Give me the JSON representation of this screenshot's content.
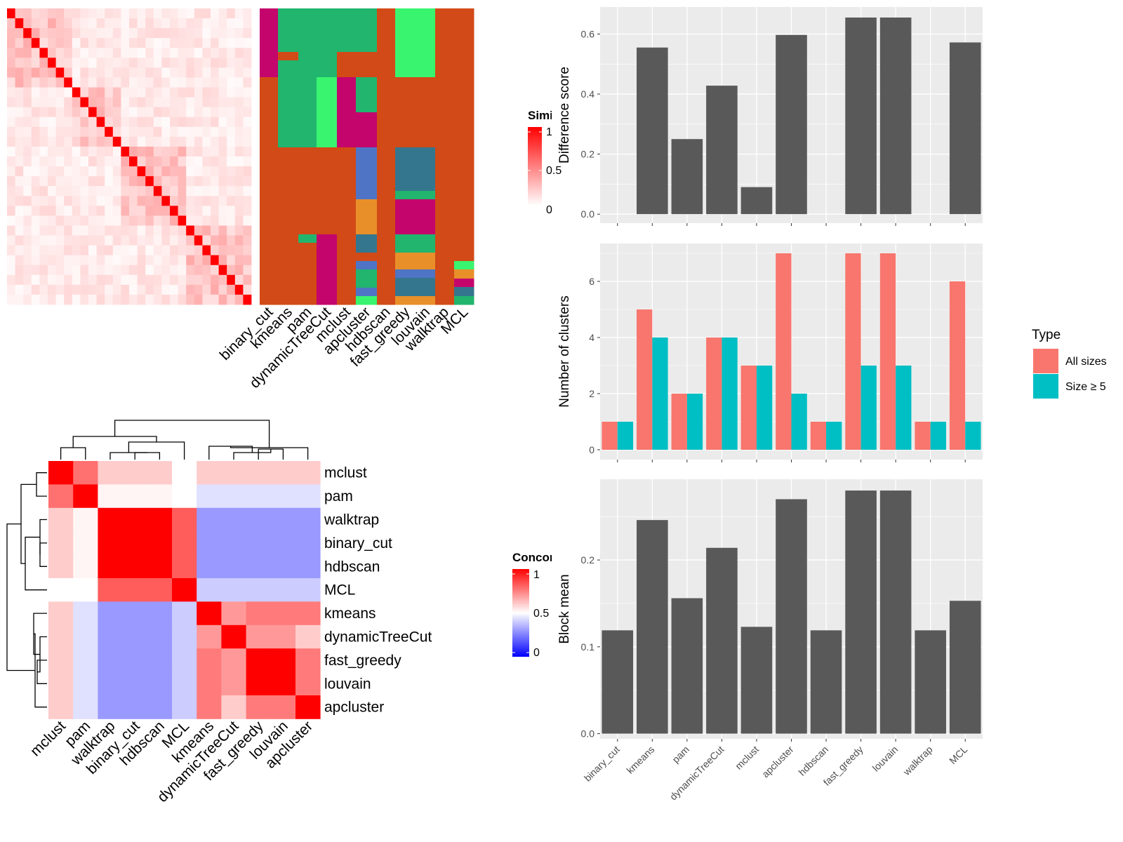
{
  "methods": [
    "binary_cut",
    "kmeans",
    "pam",
    "dynamicTreeCut",
    "mclust",
    "apcluster",
    "hdbscan",
    "fast_greedy",
    "louvain",
    "walktrap",
    "MCL"
  ],
  "colors": {
    "bar_fill": "#595959",
    "panel_bg": "#ebebeb",
    "grid": "#ffffff",
    "all_sizes": "#f8766d",
    "size5": "#00bfc4",
    "sim_high": "#ff0000",
    "sim_low": "#ffffff",
    "conc_high": "#ff0000",
    "conc_mid": "#ffffff",
    "conc_low": "#0000ff",
    "cluster_palette": [
      "#d24a17",
      "#c4056c",
      "#21b56e",
      "#39f46f",
      "#35768f",
      "#e88f2a",
      "#4f74c5"
    ]
  },
  "similarity_heatmap": {
    "legend_title": "Simila",
    "legend_ticks": [
      "1",
      "0.5",
      "0"
    ]
  },
  "concordance_heatmap": {
    "row_order": [
      "mclust",
      "pam",
      "walktrap",
      "binary_cut",
      "hdbscan",
      "MCL",
      "kmeans",
      "dynamicTreeCut",
      "fast_greedy",
      "louvain",
      "apcluster"
    ],
    "col_order": [
      "mclust",
      "pam",
      "walktrap",
      "binary_cut",
      "hdbscan",
      "MCL",
      "kmeans",
      "dynamicTreeCut",
      "fast_greedy",
      "louvain",
      "apcluster"
    ],
    "legend_title": "Concord",
    "legend_ticks": [
      "1",
      "0.5",
      "0"
    ]
  },
  "chart_data": [
    {
      "type": "bar",
      "categories": [
        "binary_cut",
        "kmeans",
        "pam",
        "dynamicTreeCut",
        "mclust",
        "apcluster",
        "hdbscan",
        "fast_greedy",
        "louvain",
        "walktrap",
        "MCL"
      ],
      "values": [
        0,
        0.555,
        0.25,
        0.428,
        0.09,
        0.597,
        0,
        0.655,
        0.655,
        0,
        0.572
      ],
      "ylabel": "Difference score",
      "ylim": [
        -0.03,
        0.69
      ],
      "yticks": [
        0,
        0.2,
        0.4,
        0.6
      ],
      "ytick_labels": [
        "0.0",
        "0.2",
        "0.4",
        "0.6"
      ],
      "grid": true
    },
    {
      "type": "bar",
      "categories": [
        "binary_cut",
        "kmeans",
        "pam",
        "dynamicTreeCut",
        "mclust",
        "apcluster",
        "hdbscan",
        "fast_greedy",
        "louvain",
        "walktrap",
        "MCL"
      ],
      "series": [
        {
          "name": "All sizes",
          "values": [
            1,
            5,
            2,
            4,
            3,
            7,
            1,
            7,
            7,
            1,
            6
          ]
        },
        {
          "name": "Size ≥ 5",
          "values": [
            1,
            4,
            2,
            4,
            3,
            2,
            1,
            3,
            3,
            1,
            1
          ]
        }
      ],
      "ylabel": "Number of clusters",
      "ylim": [
        -0.35,
        7.35
      ],
      "yticks": [
        0,
        2,
        4,
        6
      ],
      "ytick_labels": [
        "0",
        "2",
        "4",
        "6"
      ],
      "legend_title": "Type",
      "legend_position": "right",
      "grid": true
    },
    {
      "type": "bar",
      "categories": [
        "binary_cut",
        "kmeans",
        "pam",
        "dynamicTreeCut",
        "mclust",
        "apcluster",
        "hdbscan",
        "fast_greedy",
        "louvain",
        "walktrap",
        "MCL"
      ],
      "values": [
        0.119,
        0.246,
        0.156,
        0.214,
        0.123,
        0.27,
        0.119,
        0.28,
        0.28,
        0.119,
        0.153
      ],
      "ylabel": "Block mean",
      "ylim": [
        -0.006,
        0.293
      ],
      "yticks": [
        0,
        0.1,
        0.2
      ],
      "ytick_labels": [
        "0.0",
        "0.1",
        "0.2"
      ],
      "grid": true
    }
  ]
}
